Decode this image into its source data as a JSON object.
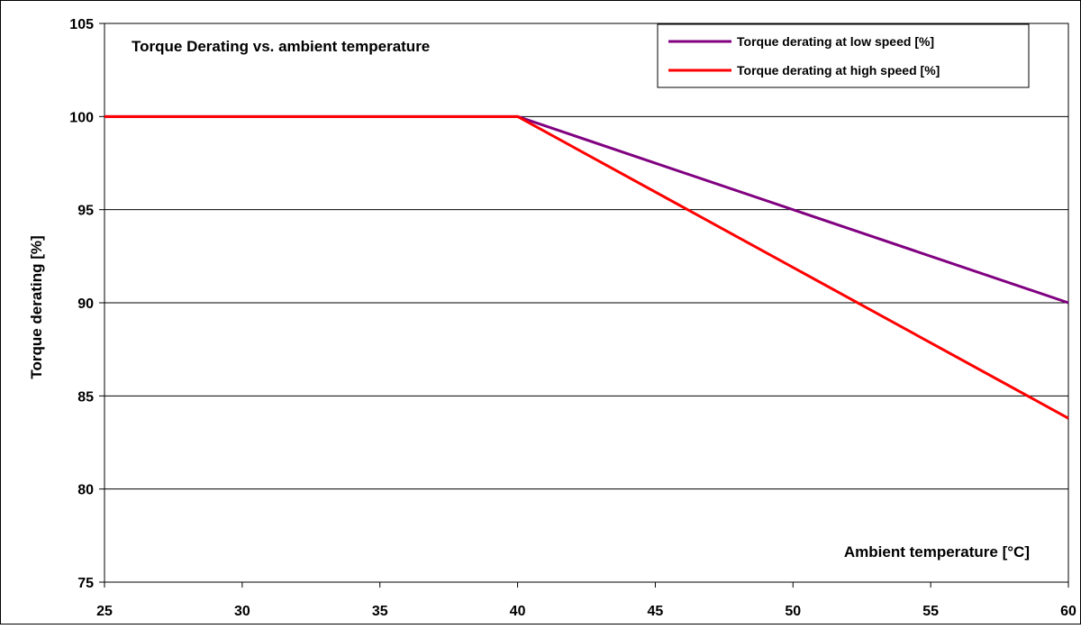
{
  "chart_data": {
    "type": "line",
    "title": "Torque Derating vs. ambient temperature",
    "xlabel": "Ambient temperature [°C]",
    "ylabel": "Torque derating [%]",
    "xlim": [
      25,
      60
    ],
    "ylim": [
      75,
      105
    ],
    "x_ticks": [
      25,
      30,
      35,
      40,
      45,
      50,
      55,
      60
    ],
    "y_ticks": [
      75,
      80,
      85,
      90,
      95,
      100,
      105
    ],
    "grid": "horizontal",
    "legend_position": "top-right",
    "series": [
      {
        "name": "Torque derating at low speed [%]",
        "color": "#800080",
        "points": [
          [
            25,
            100
          ],
          [
            40,
            100
          ],
          [
            60,
            90
          ]
        ]
      },
      {
        "name": "Torque derating at high speed  [%]",
        "color": "#ff0000",
        "points": [
          [
            25,
            100
          ],
          [
            40,
            100
          ],
          [
            60,
            83.8
          ]
        ]
      }
    ]
  }
}
